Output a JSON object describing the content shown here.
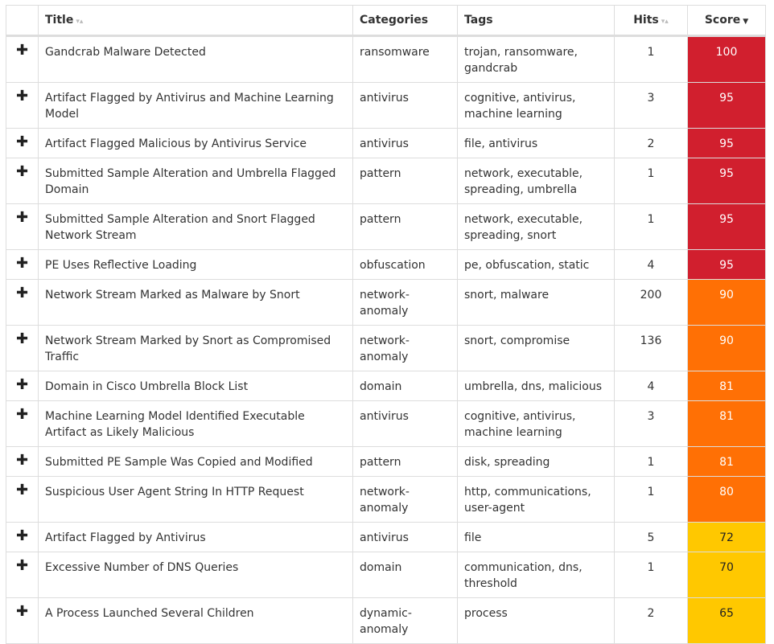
{
  "table": {
    "columns": [
      "Title",
      "Categories",
      "Tags",
      "Hits",
      "Score"
    ],
    "rows": [
      {
        "title": "Gandcrab Malware Detected",
        "category": "ransomware",
        "tags": "trojan, ransomware, gandcrab",
        "hits": 1,
        "score": 100,
        "color": "#d11f2e"
      },
      {
        "title": "Artifact Flagged by Antivirus and Machine Learning Model",
        "category": "antivirus",
        "tags": "cognitive, antivirus, machine learning",
        "hits": 3,
        "score": 95,
        "color": "#d11f2e"
      },
      {
        "title": "Artifact Flagged Malicious by Antivirus Service",
        "category": "antivirus",
        "tags": "file, antivirus",
        "hits": 2,
        "score": 95,
        "color": "#d11f2e"
      },
      {
        "title": "Submitted Sample Alteration and Umbrella Flagged Domain",
        "category": "pattern",
        "tags": "network, executable, spreading, umbrella",
        "hits": 1,
        "score": 95,
        "color": "#d11f2e"
      },
      {
        "title": "Submitted Sample Alteration and Snort Flagged Network Stream",
        "category": "pattern",
        "tags": "network, executable, spreading, snort",
        "hits": 1,
        "score": 95,
        "color": "#d11f2e"
      },
      {
        "title": "PE Uses Reflective Loading",
        "category": "obfuscation",
        "tags": "pe, obfuscation, static",
        "hits": 4,
        "score": 95,
        "color": "#d11f2e"
      },
      {
        "title": "Network Stream Marked as Malware by Snort",
        "category": "network-anomaly",
        "tags": "snort, malware",
        "hits": 200,
        "score": 90,
        "color": "#ff7005"
      },
      {
        "title": "Network Stream Marked by Snort as Compromised Traffic",
        "category": "network-anomaly",
        "tags": "snort, compromise",
        "hits": 136,
        "score": 90,
        "color": "#ff7005"
      },
      {
        "title": "Domain in Cisco Umbrella Block List",
        "category": "domain",
        "tags": "umbrella, dns, malicious",
        "hits": 4,
        "score": 81,
        "color": "#ff7005"
      },
      {
        "title": "Machine Learning Model Identified Executable Artifact as Likely Malicious",
        "category": "antivirus",
        "tags": "cognitive, antivirus, machine learning",
        "hits": 3,
        "score": 81,
        "color": "#ff7005"
      },
      {
        "title": "Submitted PE Sample Was Copied and Modified",
        "category": "pattern",
        "tags": "disk, spreading",
        "hits": 1,
        "score": 81,
        "color": "#ff7005"
      },
      {
        "title": "Suspicious User Agent String In HTTP Request",
        "category": "network-anomaly",
        "tags": "http, communications, user-agent",
        "hits": 1,
        "score": 80,
        "color": "#ff7005"
      },
      {
        "title": "Artifact Flagged by Antivirus",
        "category": "antivirus",
        "tags": "file",
        "hits": 5,
        "score": 72,
        "color": "#ffc800"
      },
      {
        "title": "Excessive Number of DNS Queries",
        "category": "domain",
        "tags": "communication, dns, threshold",
        "hits": 1,
        "score": 70,
        "color": "#ffc800"
      },
      {
        "title": "A Process Launched Several Children",
        "category": "dynamic-anomaly",
        "tags": "process",
        "hits": 2,
        "score": 65,
        "color": "#ffc800"
      }
    ]
  }
}
